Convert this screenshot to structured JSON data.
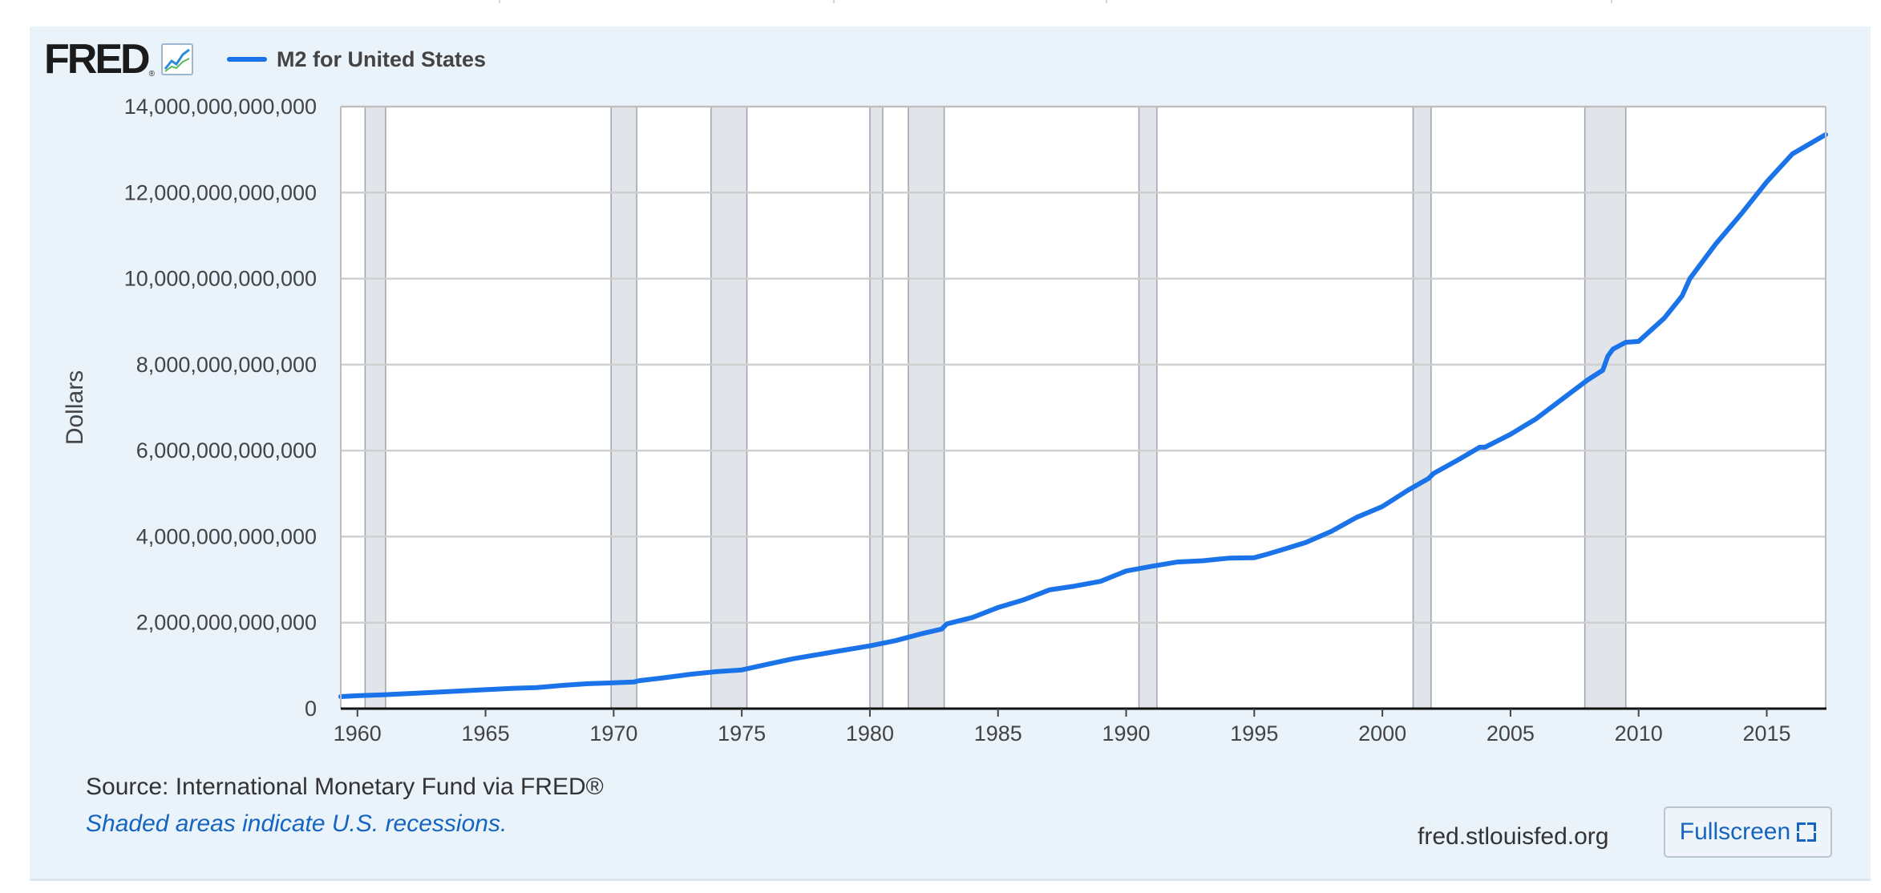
{
  "brand": {
    "logo_text": "FRED",
    "logo_reg": "®",
    "chart_icon": "line-chart-icon"
  },
  "colors": {
    "series": "#1a73e8",
    "recession_band": "#e1e5e9",
    "panel_bg": "#eaf2fa",
    "link": "#1565c0"
  },
  "footer": {
    "source": "Source: International Monetary Fund via FRED®",
    "note": "Shaded areas indicate U.S. recessions.",
    "site": "fred.stlouisfed.org",
    "fullscreen_label": "Fullscreen",
    "fullscreen_icon": "expand-icon"
  },
  "chart_data": {
    "type": "line",
    "title": "",
    "xlabel": "",
    "ylabel": "Dollars",
    "xlim": [
      1959.35,
      2017.3
    ],
    "ylim": [
      0,
      14000000000000
    ],
    "grid": true,
    "legend": "top-left",
    "y_ticks": [
      0,
      2000000000000,
      4000000000000,
      6000000000000,
      8000000000000,
      10000000000000,
      12000000000000,
      14000000000000
    ],
    "y_tick_labels": [
      "0",
      "2,000,000,000,000",
      "4,000,000,000,000",
      "6,000,000,000,000",
      "8,000,000,000,000",
      "10,000,000,000,000",
      "12,000,000,000,000",
      "14,000,000,000,000"
    ],
    "x_ticks": [
      1960,
      1965,
      1970,
      1975,
      1980,
      1985,
      1990,
      1995,
      2000,
      2005,
      2010,
      2015
    ],
    "x_tick_labels": [
      "1960",
      "1965",
      "1970",
      "1975",
      "1980",
      "1985",
      "1990",
      "1995",
      "2000",
      "2005",
      "2010",
      "2015"
    ],
    "recessions": [
      [
        1960.3,
        1961.1
      ],
      [
        1969.9,
        1970.9
      ],
      [
        1973.8,
        1975.2
      ],
      [
        1980.0,
        1980.5
      ],
      [
        1981.5,
        1982.9
      ],
      [
        1990.5,
        1991.2
      ],
      [
        2001.2,
        2001.9
      ],
      [
        2007.9,
        2009.5
      ]
    ],
    "series": [
      {
        "name": "M2 for United States",
        "x": [
          1959.35,
          1960,
          1961,
          1962,
          1963,
          1964,
          1965,
          1966,
          1967,
          1968,
          1969,
          1970,
          1970.8,
          1971,
          1972,
          1973,
          1974,
          1975,
          1976,
          1977,
          1978,
          1979,
          1980,
          1981,
          1982,
          1982.8,
          1983,
          1984,
          1985,
          1986,
          1987,
          1988,
          1989,
          1990,
          1991,
          1992,
          1993,
          1994,
          1995,
          1995.5,
          1996,
          1997,
          1998,
          1999,
          2000,
          2001,
          2001.8,
          2002,
          2003,
          2003.8,
          2004,
          2005,
          2006,
          2007,
          2008,
          2008.6,
          2008.8,
          2009,
          2009.5,
          2010,
          2011,
          2011.5,
          2011.7,
          2012,
          2013,
          2014,
          2015,
          2016,
          2017.3
        ],
        "y": [
          280000000000,
          300000000000,
          320000000000,
          350000000000,
          380000000000,
          410000000000,
          440000000000,
          470000000000,
          490000000000,
          540000000000,
          580000000000,
          600000000000,
          620000000000,
          650000000000,
          720000000000,
          800000000000,
          860000000000,
          900000000000,
          1030000000000,
          1160000000000,
          1260000000000,
          1360000000000,
          1460000000000,
          1580000000000,
          1740000000000,
          1850000000000,
          1970000000000,
          2120000000000,
          2350000000000,
          2530000000000,
          2760000000000,
          2850000000000,
          2960000000000,
          3200000000000,
          3310000000000,
          3410000000000,
          3440000000000,
          3500000000000,
          3510000000000,
          3590000000000,
          3680000000000,
          3860000000000,
          4120000000000,
          4450000000000,
          4700000000000,
          5080000000000,
          5350000000000,
          5470000000000,
          5800000000000,
          6080000000000,
          6080000000000,
          6380000000000,
          6740000000000,
          7190000000000,
          7640000000000,
          7870000000000,
          8200000000000,
          8360000000000,
          8520000000000,
          8540000000000,
          9080000000000,
          9450000000000,
          9600000000000,
          10000000000000,
          10800000000000,
          11500000000000,
          12250000000000,
          12900000000000,
          13350000000000
        ]
      }
    ]
  }
}
